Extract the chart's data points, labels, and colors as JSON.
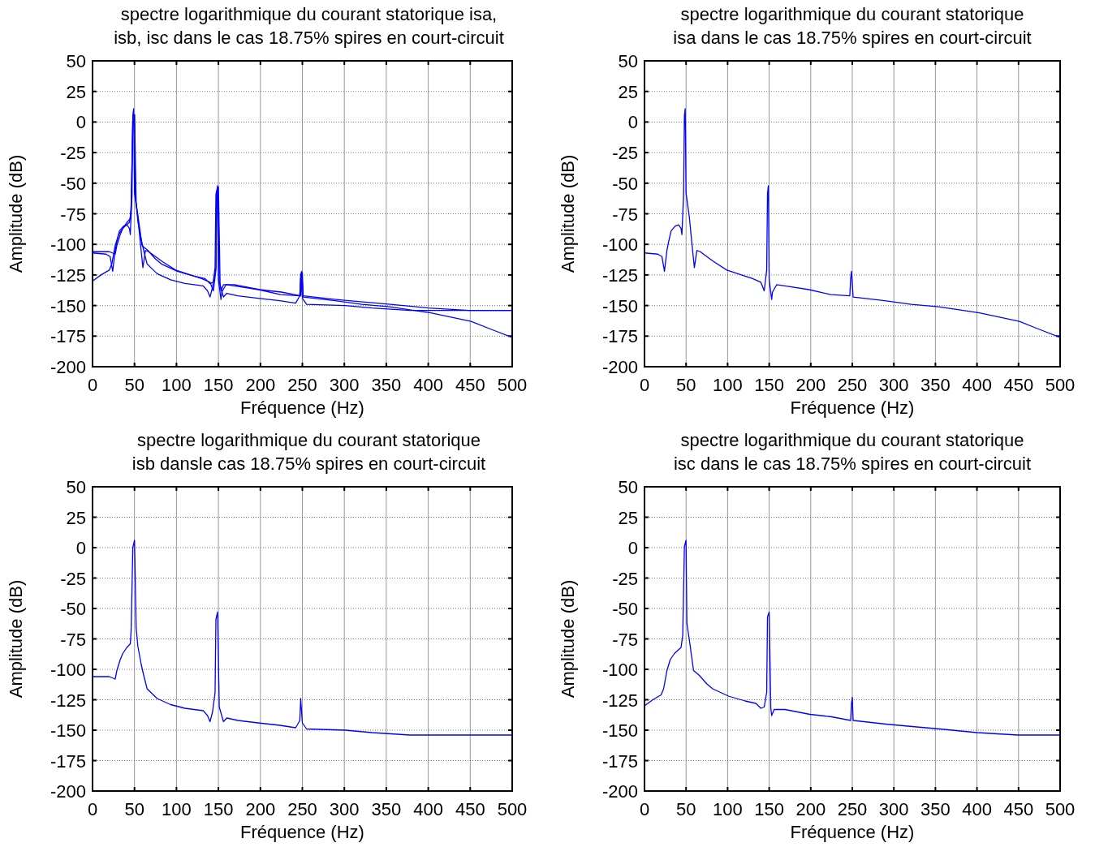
{
  "chart_data": [
    {
      "type": "line",
      "title": "spectre logarithmique du courant statorique isa,\nisb, isc dans le cas 18.75% spires en court-circuit",
      "xlabel": "Fréquence (Hz)",
      "ylabel": "Amplitude (dB)",
      "xlim": [
        0,
        500
      ],
      "ylim": [
        -200,
        50
      ],
      "xticks": [
        0,
        50,
        100,
        150,
        200,
        250,
        300,
        350,
        400,
        450,
        500
      ],
      "yticks": [
        -200,
        -175,
        -150,
        -125,
        -100,
        -75,
        -50,
        -25,
        0,
        25,
        50
      ],
      "grid": true,
      "series": [
        {
          "color": "#0000ff",
          "x": [
            0,
            16,
            21,
            24,
            27,
            29,
            32,
            37,
            41,
            44,
            45,
            47,
            48,
            49,
            50,
            54,
            57,
            60,
            63,
            67,
            83,
            99,
            130,
            140,
            144,
            147,
            148,
            149,
            150,
            153,
            154,
            159,
            169,
            198,
            224,
            247,
            248,
            249,
            251,
            289,
            321,
            354,
            403,
            451,
            477,
            500
          ],
          "values": [
            -107,
            -108,
            -110,
            -122,
            -105,
            -98,
            -89,
            -85,
            -84,
            -87,
            -92,
            -60,
            5,
            11,
            -58,
            -78,
            -99,
            -119,
            -105,
            -106,
            -114,
            -121,
            -128,
            -131,
            -138,
            -121,
            -58,
            -52,
            -129,
            -145,
            -139,
            -133,
            -134,
            -137,
            -141,
            -142,
            -128,
            -122,
            -143,
            -146,
            -149,
            -151,
            -156,
            -163,
            -170,
            -176
          ]
        },
        {
          "color": "#0000ff",
          "x": [
            0,
            20,
            27,
            29,
            33,
            36,
            41,
            45,
            46,
            48,
            50,
            52,
            54,
            58,
            61,
            65,
            71,
            77,
            93,
            110,
            132,
            137,
            140,
            143,
            146,
            147,
            149,
            151,
            156,
            160,
            173,
            197,
            223,
            242,
            247,
            248,
            250,
            255,
            301,
            333,
            378,
            500
          ],
          "values": [
            -106,
            -106,
            -108,
            -101,
            -92,
            -87,
            -82,
            -79,
            -68,
            0,
            6,
            -66,
            -81,
            -96,
            -105,
            -116,
            -120,
            -124,
            -129,
            -132,
            -134,
            -138,
            -143,
            -135,
            -119,
            -59,
            -53,
            -131,
            -143,
            -140,
            -142,
            -144,
            -146,
            -148,
            -142,
            -124,
            -144,
            -149,
            -150,
            -152,
            -154,
            -154
          ]
        },
        {
          "color": "#0000ff",
          "x": [
            0,
            10,
            20,
            23,
            27,
            31,
            36,
            44,
            46,
            48,
            50,
            51,
            54,
            59,
            66,
            75,
            82,
            101,
            121,
            134,
            140,
            144,
            147,
            148,
            150,
            152,
            153,
            156,
            169,
            199,
            225,
            248,
            249,
            250,
            251,
            290,
            322,
            355,
            400,
            449,
            500
          ],
          "values": [
            -130,
            -125,
            -121,
            -116,
            -101,
            -92,
            -87,
            -82,
            -72,
            1,
            6,
            -62,
            -76,
            -101,
            -105,
            -112,
            -116,
            -122,
            -126,
            -128,
            -132,
            -131,
            -119,
            -57,
            -53,
            -132,
            -138,
            -133,
            -133,
            -137,
            -139,
            -142,
            -128,
            -123,
            -142,
            -145,
            -147,
            -149,
            -152,
            -154,
            -154
          ]
        }
      ]
    },
    {
      "type": "line",
      "title": "spectre logarithmique du courant statorique\nisa dans le cas 18.75% spires en court-circuit",
      "xlabel": "Fréquence (Hz)",
      "ylabel": "Amplitude (dB)",
      "xlim": [
        0,
        500
      ],
      "ylim": [
        -200,
        50
      ],
      "xticks": [
        0,
        50,
        100,
        150,
        200,
        250,
        300,
        350,
        400,
        450,
        500
      ],
      "yticks": [
        -200,
        -175,
        -150,
        -125,
        -100,
        -75,
        -50,
        -25,
        0,
        25,
        50
      ],
      "grid": true,
      "series": [
        {
          "color": "#0000ff",
          "x": [
            0,
            16,
            21,
            24,
            27,
            29,
            32,
            37,
            41,
            44,
            45,
            47,
            48,
            49,
            50,
            54,
            57,
            60,
            63,
            67,
            83,
            99,
            130,
            140,
            144,
            147,
            148,
            149,
            150,
            153,
            154,
            159,
            169,
            198,
            224,
            247,
            248,
            249,
            251,
            289,
            321,
            354,
            403,
            451,
            477,
            500
          ],
          "values": [
            -107,
            -108,
            -110,
            -122,
            -105,
            -98,
            -89,
            -85,
            -84,
            -87,
            -92,
            -60,
            5,
            11,
            -58,
            -78,
            -99,
            -119,
            -105,
            -106,
            -114,
            -121,
            -128,
            -131,
            -138,
            -121,
            -58,
            -52,
            -129,
            -145,
            -139,
            -133,
            -134,
            -137,
            -141,
            -142,
            -128,
            -122,
            -143,
            -146,
            -149,
            -151,
            -156,
            -163,
            -170,
            -176
          ]
        }
      ]
    },
    {
      "type": "line",
      "title": "spectre logarithmique du courant statorique\nisb dansle cas 18.75% spires en court-circuit",
      "xlabel": "Fréquence (Hz)",
      "ylabel": "Amplitude (dB)",
      "xlim": [
        0,
        500
      ],
      "ylim": [
        -200,
        50
      ],
      "xticks": [
        0,
        50,
        100,
        150,
        200,
        250,
        300,
        350,
        400,
        450,
        500
      ],
      "yticks": [
        -200,
        -175,
        -150,
        -125,
        -100,
        -75,
        -50,
        -25,
        0,
        25,
        50
      ],
      "grid": true,
      "series": [
        {
          "color": "#0000ff",
          "x": [
            0,
            20,
            27,
            29,
            33,
            36,
            41,
            45,
            46,
            48,
            50,
            52,
            54,
            58,
            61,
            65,
            71,
            77,
            93,
            110,
            132,
            137,
            140,
            143,
            146,
            147,
            149,
            151,
            156,
            160,
            173,
            197,
            223,
            242,
            247,
            248,
            250,
            255,
            301,
            333,
            378,
            500
          ],
          "values": [
            -106,
            -106,
            -108,
            -101,
            -92,
            -87,
            -82,
            -79,
            -68,
            0,
            6,
            -66,
            -81,
            -96,
            -105,
            -116,
            -120,
            -124,
            -129,
            -132,
            -134,
            -138,
            -143,
            -135,
            -119,
            -59,
            -53,
            -131,
            -143,
            -140,
            -142,
            -144,
            -146,
            -148,
            -142,
            -124,
            -144,
            -149,
            -150,
            -152,
            -154,
            -154
          ]
        }
      ]
    },
    {
      "type": "line",
      "title": "spectre logarithmique du courant statorique\nisc dans le cas 18.75% spires en court-circuit",
      "xlabel": "Fréquence (Hz)",
      "ylabel": "Amplitude (dB)",
      "xlim": [
        0,
        500
      ],
      "ylim": [
        -200,
        50
      ],
      "xticks": [
        0,
        50,
        100,
        150,
        200,
        250,
        300,
        350,
        400,
        450,
        500
      ],
      "yticks": [
        -200,
        -175,
        -150,
        -125,
        -100,
        -75,
        -50,
        -25,
        0,
        25,
        50
      ],
      "grid": true,
      "series": [
        {
          "color": "#0000ff",
          "x": [
            0,
            10,
            20,
            23,
            27,
            31,
            36,
            44,
            46,
            48,
            50,
            51,
            54,
            59,
            66,
            75,
            82,
            101,
            121,
            134,
            140,
            144,
            147,
            148,
            150,
            152,
            153,
            156,
            169,
            199,
            225,
            248,
            249,
            250,
            251,
            290,
            322,
            355,
            400,
            449,
            500
          ],
          "values": [
            -130,
            -125,
            -121,
            -116,
            -101,
            -92,
            -87,
            -82,
            -72,
            1,
            6,
            -62,
            -76,
            -101,
            -105,
            -112,
            -116,
            -122,
            -126,
            -128,
            -132,
            -131,
            -119,
            -57,
            -53,
            -132,
            -138,
            -133,
            -133,
            -137,
            -139,
            -142,
            -128,
            -123,
            -142,
            -145,
            -147,
            -149,
            -152,
            -154,
            -154
          ]
        }
      ]
    }
  ]
}
